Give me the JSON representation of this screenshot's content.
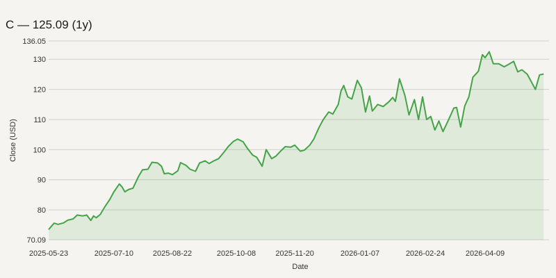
{
  "title": "C — 125.09 (1y)",
  "colors": {
    "line": "#44a347",
    "fill": "#44a347",
    "grid": "#cfcfcf",
    "background": "#f5f4f0"
  },
  "chart_data": {
    "type": "area",
    "title": "C — 125.09 (1y)",
    "xlabel": "Date",
    "ylabel": "Close (USD)",
    "ylim": [
      70.09,
      136.05
    ],
    "xlim": [
      "2025-05-23",
      "2026-05-26"
    ],
    "grid": true,
    "legend": "none",
    "y_ticks": [
      70.09,
      80,
      90,
      100,
      110,
      120,
      130,
      136.05
    ],
    "y_tick_labels": [
      "70.09",
      "80",
      "90",
      "100",
      "110",
      "120",
      "130",
      "136.05"
    ],
    "x_ticks": [
      "2025-05-23",
      "2025-07-10",
      "2025-08-22",
      "2025-10-08",
      "2025-11-20",
      "2026-01-07",
      "2026-02-24",
      "2026-04-09"
    ],
    "series": [
      {
        "name": "",
        "points": [
          [
            "2025-05-23",
            73.5
          ],
          [
            "2025-05-27",
            75.6
          ],
          [
            "2025-05-30",
            75.2
          ],
          [
            "2025-06-03",
            75.7
          ],
          [
            "2025-06-06",
            76.6
          ],
          [
            "2025-06-10",
            77.0
          ],
          [
            "2025-06-13",
            78.3
          ],
          [
            "2025-06-17",
            78.0
          ],
          [
            "2025-06-20",
            78.3
          ],
          [
            "2025-06-23",
            76.5
          ],
          [
            "2025-06-25",
            78.0
          ],
          [
            "2025-06-27",
            77.4
          ],
          [
            "2025-06-30",
            78.5
          ],
          [
            "2025-07-03",
            80.8
          ],
          [
            "2025-07-07",
            83.5
          ],
          [
            "2025-07-10",
            86.0
          ],
          [
            "2025-07-14",
            88.6
          ],
          [
            "2025-07-16",
            87.6
          ],
          [
            "2025-07-18",
            86.0
          ],
          [
            "2025-07-21",
            86.8
          ],
          [
            "2025-07-24",
            87.2
          ],
          [
            "2025-07-28",
            91.0
          ],
          [
            "2025-07-31",
            93.3
          ],
          [
            "2025-08-04",
            93.5
          ],
          [
            "2025-08-07",
            95.8
          ],
          [
            "2025-08-11",
            95.6
          ],
          [
            "2025-08-14",
            94.5
          ],
          [
            "2025-08-16",
            92.0
          ],
          [
            "2025-08-19",
            92.2
          ],
          [
            "2025-08-22",
            91.7
          ],
          [
            "2025-08-26",
            93.0
          ],
          [
            "2025-08-28",
            95.7
          ],
          [
            "2025-09-01",
            94.8
          ],
          [
            "2025-09-04",
            93.5
          ],
          [
            "2025-09-08",
            92.8
          ],
          [
            "2025-09-11",
            95.6
          ],
          [
            "2025-09-15",
            96.3
          ],
          [
            "2025-09-18",
            95.4
          ],
          [
            "2025-09-22",
            96.4
          ],
          [
            "2025-09-25",
            97.0
          ],
          [
            "2025-09-29",
            99.2
          ],
          [
            "2025-10-02",
            101.0
          ],
          [
            "2025-10-06",
            102.8
          ],
          [
            "2025-10-09",
            103.5
          ],
          [
            "2025-10-13",
            102.6
          ],
          [
            "2025-10-16",
            100.5
          ],
          [
            "2025-10-20",
            98.2
          ],
          [
            "2025-10-23",
            97.5
          ],
          [
            "2025-10-27",
            94.5
          ],
          [
            "2025-10-30",
            100.0
          ],
          [
            "2025-11-03",
            97.0
          ],
          [
            "2025-11-06",
            97.8
          ],
          [
            "2025-11-10",
            99.7
          ],
          [
            "2025-11-13",
            101.0
          ],
          [
            "2025-11-17",
            100.8
          ],
          [
            "2025-11-20",
            101.5
          ],
          [
            "2025-11-24",
            99.5
          ],
          [
            "2025-11-27",
            99.8
          ],
          [
            "2025-12-01",
            101.5
          ],
          [
            "2025-12-04",
            103.5
          ],
          [
            "2025-12-08",
            107.5
          ],
          [
            "2025-12-11",
            110.0
          ],
          [
            "2025-12-15",
            112.5
          ],
          [
            "2025-12-18",
            111.8
          ],
          [
            "2025-12-22",
            115.0
          ],
          [
            "2025-12-24",
            119.5
          ],
          [
            "2025-12-26",
            121.3
          ],
          [
            "2025-12-29",
            117.5
          ],
          [
            "2026-01-01",
            116.8
          ],
          [
            "2026-01-05",
            123.0
          ],
          [
            "2026-01-08",
            120.5
          ],
          [
            "2026-01-11",
            112.5
          ],
          [
            "2026-01-14",
            117.8
          ],
          [
            "2026-01-16",
            112.8
          ],
          [
            "2026-01-20",
            115.0
          ],
          [
            "2026-01-24",
            114.3
          ],
          [
            "2026-01-28",
            115.8
          ],
          [
            "2026-01-31",
            117.3
          ],
          [
            "2026-02-02",
            116.0
          ],
          [
            "2026-02-05",
            123.5
          ],
          [
            "2026-02-09",
            118.0
          ],
          [
            "2026-02-12",
            111.5
          ],
          [
            "2026-02-16",
            116.6
          ],
          [
            "2026-02-19",
            110.0
          ],
          [
            "2026-02-22",
            117.5
          ],
          [
            "2026-02-25",
            110.0
          ],
          [
            "2026-02-28",
            111.0
          ],
          [
            "2026-03-03",
            106.5
          ],
          [
            "2026-03-06",
            109.5
          ],
          [
            "2026-03-09",
            106.0
          ],
          [
            "2026-03-13",
            109.8
          ],
          [
            "2026-03-17",
            113.8
          ],
          [
            "2026-03-19",
            114.0
          ],
          [
            "2026-03-22",
            107.5
          ],
          [
            "2026-03-25",
            114.5
          ],
          [
            "2026-03-28",
            117.5
          ],
          [
            "2026-03-31",
            124.0
          ],
          [
            "2026-04-04",
            126.0
          ],
          [
            "2026-04-07",
            131.5
          ],
          [
            "2026-04-09",
            130.5
          ],
          [
            "2026-04-12",
            132.5
          ],
          [
            "2026-04-15",
            128.5
          ],
          [
            "2026-04-19",
            128.5
          ],
          [
            "2026-04-23",
            127.5
          ],
          [
            "2026-04-27",
            128.5
          ],
          [
            "2026-04-30",
            129.3
          ],
          [
            "2026-05-03",
            125.8
          ],
          [
            "2026-05-06",
            126.5
          ],
          [
            "2026-05-10",
            125.0
          ],
          [
            "2026-05-13",
            122.5
          ],
          [
            "2026-05-16",
            120.0
          ],
          [
            "2026-05-19",
            124.8
          ],
          [
            "2026-05-22",
            125.09
          ]
        ]
      }
    ]
  }
}
